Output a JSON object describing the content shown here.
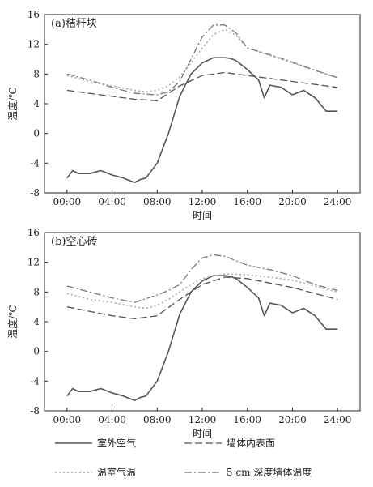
{
  "legend": [
    {
      "label": "室外空气",
      "color": "#555555",
      "dash": "solid",
      "key": "outdoor"
    },
    {
      "label": "墙体内表面",
      "color": "#555555",
      "dash": "dashed",
      "key": "inner"
    },
    {
      "label": "温室气温",
      "color": "#aaaaaa",
      "dash": "dotted",
      "key": "greenhouse"
    },
    {
      "label": "5 cm 深度墙体温度",
      "color": "#777777",
      "dash": "dashdot",
      "key": "depth5"
    }
  ],
  "chart_data": [
    {
      "type": "line",
      "title": "(a)秸秆块",
      "xlabel": "时间",
      "ylabel": "温度/℃",
      "ylim": [
        -8,
        16
      ],
      "yticks": [
        "-8",
        "-4",
        "0",
        "4",
        "8",
        "12",
        "16"
      ],
      "xticks": [
        "00:00",
        "04:00",
        "08:00",
        "12:00",
        "16:00",
        "20:00",
        "24:00"
      ],
      "xlim_hours": [
        -2,
        26
      ],
      "grid": false,
      "series": [
        {
          "name": "室外空气",
          "key": "outdoor",
          "x": [
            0,
            0.5,
            1,
            2,
            3,
            4,
            5,
            6,
            6.5,
            7,
            8,
            9,
            10,
            11,
            12,
            13,
            14,
            14.5,
            15,
            16,
            17,
            17.5,
            18,
            19,
            20,
            21,
            22,
            23,
            24
          ],
          "y": [
            -6,
            -5,
            -5.4,
            -5.4,
            -5,
            -5.6,
            -6,
            -6.6,
            -6.2,
            -6,
            -4,
            0,
            5,
            8,
            9.5,
            10.2,
            10.2,
            10.1,
            9.8,
            8.6,
            7.2,
            4.8,
            6.5,
            6.2,
            5.2,
            5.8,
            4.8,
            3,
            3
          ]
        },
        {
          "name": "墙体内表面",
          "key": "inner",
          "x": [
            0,
            2,
            4,
            6,
            8,
            10,
            12,
            14,
            16,
            18,
            20,
            22,
            24
          ],
          "y": [
            5.8,
            5.4,
            5,
            4.6,
            4.4,
            6.4,
            7.8,
            8.2,
            7.8,
            7.4,
            7,
            6.6,
            6.2
          ]
        },
        {
          "name": "温室气温",
          "key": "greenhouse",
          "x": [
            0,
            2,
            4,
            6,
            7,
            8,
            9,
            10,
            11,
            12,
            13,
            14,
            15,
            16,
            18,
            20,
            22,
            24
          ],
          "y": [
            7.8,
            7,
            6.4,
            5.8,
            5.6,
            5.8,
            6.4,
            7.6,
            9.5,
            11.5,
            13.3,
            14,
            13.2,
            11.5,
            10.5,
            9.5,
            8.5,
            7.5
          ]
        },
        {
          "name": "5 cm 深度墙体温度",
          "key": "depth5",
          "x": [
            0,
            2,
            4,
            6,
            8,
            9,
            10,
            11,
            12,
            13,
            14,
            15,
            16,
            18,
            20,
            22,
            24
          ],
          "y": [
            8,
            7.2,
            6.2,
            5.4,
            5.2,
            5.6,
            7,
            10,
            13,
            14.6,
            14.6,
            13.5,
            11.5,
            10.6,
            9.6,
            8.5,
            7.5
          ]
        }
      ]
    },
    {
      "type": "line",
      "title": "(b)空心砖",
      "xlabel": "时间",
      "ylabel": "温度/℃",
      "ylim": [
        -8,
        16
      ],
      "yticks": [
        "-8",
        "-4",
        "0",
        "4",
        "8",
        "12",
        "16"
      ],
      "xticks": [
        "00:00",
        "04:00",
        "08:00",
        "12:00",
        "16:00",
        "20:00",
        "24:00"
      ],
      "xlim_hours": [
        -2,
        26
      ],
      "grid": false,
      "series": [
        {
          "name": "室外空气",
          "key": "outdoor",
          "x": [
            0,
            0.5,
            1,
            2,
            3,
            4,
            5,
            6,
            6.5,
            7,
            8,
            9,
            10,
            11,
            12,
            13,
            14,
            14.5,
            15,
            16,
            17,
            17.5,
            18,
            19,
            20,
            21,
            22,
            23,
            24
          ],
          "y": [
            -6,
            -5,
            -5.4,
            -5.4,
            -5,
            -5.6,
            -6,
            -6.6,
            -6.2,
            -6,
            -4,
            0,
            5,
            8,
            9.5,
            10.2,
            10.2,
            10.1,
            9.8,
            8.6,
            7.2,
            4.8,
            6.5,
            6.2,
            5.2,
            5.8,
            4.8,
            3,
            3
          ]
        },
        {
          "name": "墙体内表面",
          "key": "inner",
          "x": [
            0,
            2,
            4,
            6,
            8,
            10,
            12,
            14,
            16,
            18,
            20,
            22,
            24
          ],
          "y": [
            6,
            5.4,
            4.8,
            4.4,
            4.8,
            7,
            9,
            10,
            9.8,
            9.2,
            8.6,
            7.8,
            7
          ]
        },
        {
          "name": "温室气温",
          "key": "greenhouse",
          "x": [
            0,
            2,
            4,
            6,
            7,
            8,
            9,
            10,
            11,
            12,
            13,
            14,
            15,
            16,
            18,
            20,
            22,
            24
          ],
          "y": [
            7.8,
            7,
            6.6,
            6,
            5.8,
            6.2,
            7,
            8,
            9,
            9.8,
            10.2,
            10.4,
            10.4,
            10.3,
            10,
            9.6,
            8.8,
            8
          ]
        },
        {
          "name": "5 cm 深度墙体温度",
          "key": "depth5",
          "x": [
            0,
            2,
            4,
            6,
            8,
            9,
            10,
            11,
            12,
            13,
            14,
            15,
            16,
            18,
            20,
            22,
            24
          ],
          "y": [
            8.8,
            8,
            7.2,
            6.6,
            7.6,
            8.2,
            9,
            11,
            12.6,
            13,
            12.8,
            12.2,
            11.6,
            11,
            10.2,
            9,
            8.2
          ]
        }
      ]
    }
  ]
}
